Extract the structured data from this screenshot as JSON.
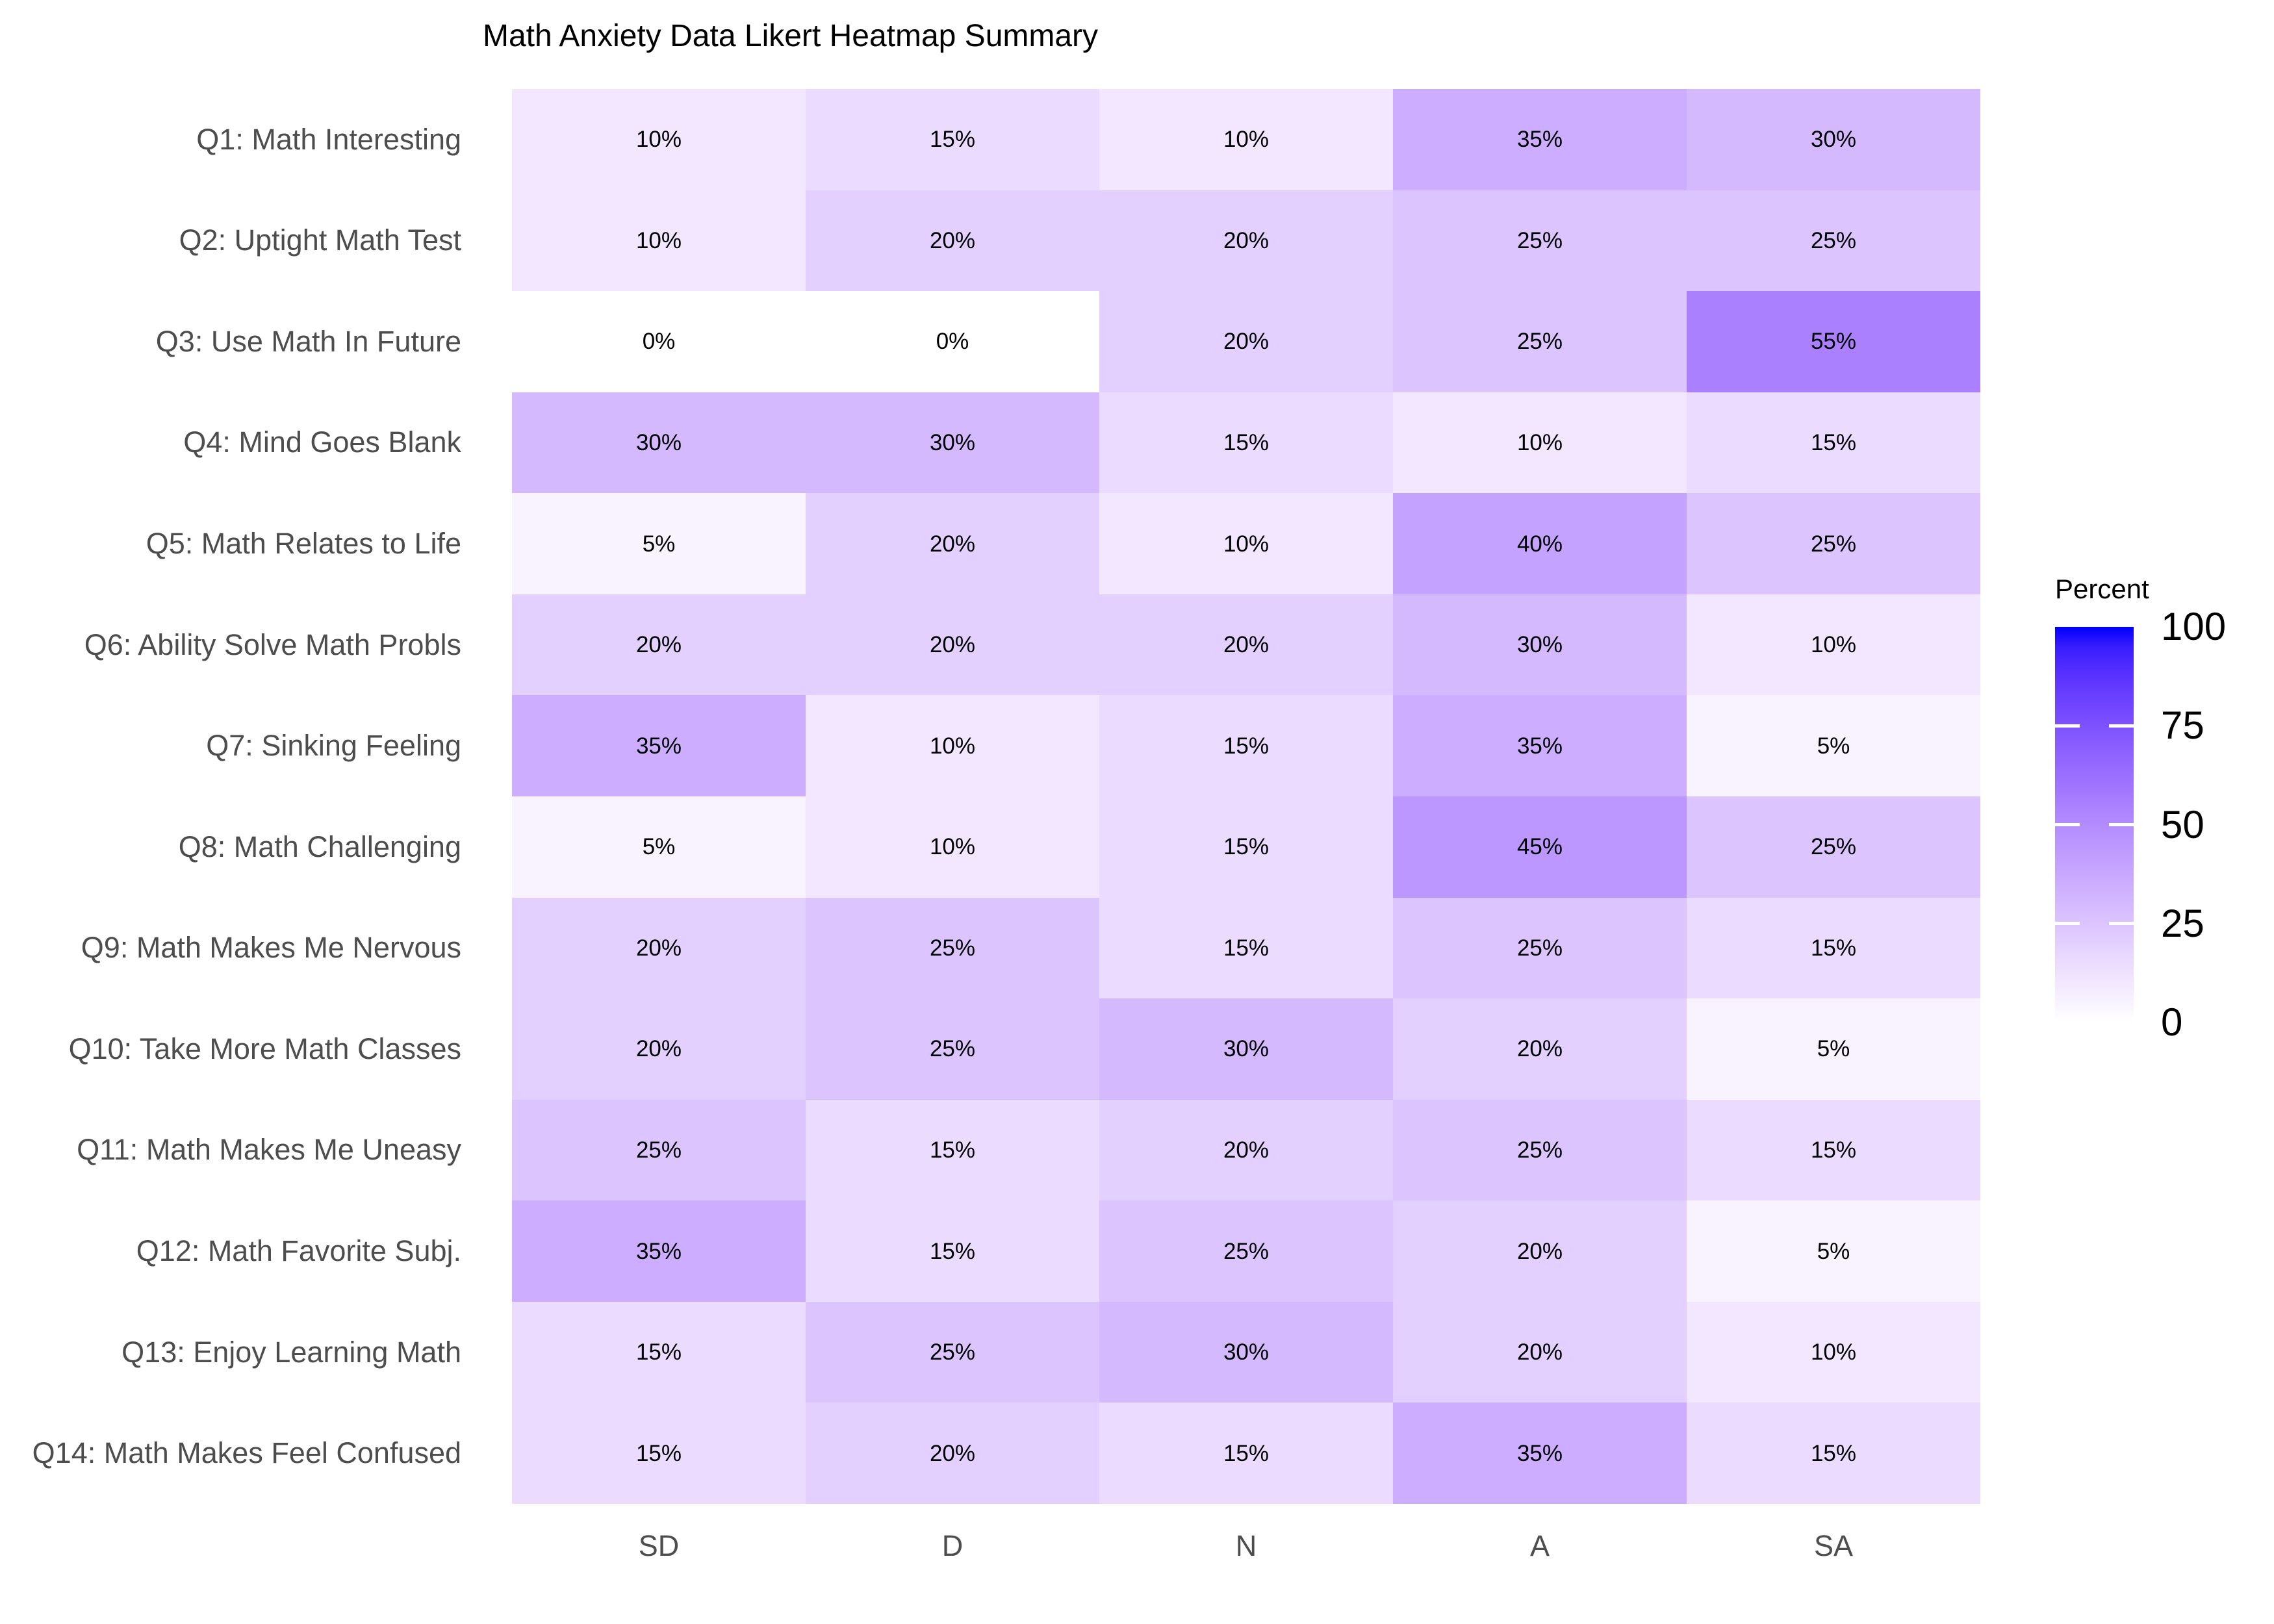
{
  "page": {
    "background_color": "#FFFFFF"
  },
  "chart_data": {
    "type": "heatmap",
    "title": "Math Anxiety Data Likert Heatmap Summary",
    "x_categories": [
      "SD",
      "D",
      "N",
      "A",
      "SA"
    ],
    "y_categories": [
      "Q1: Math Interesting",
      "Q2: Uptight Math Test",
      "Q3: Use Math In Future",
      "Q4: Mind Goes Blank",
      "Q5: Math Relates to Life",
      "Q6: Ability Solve Math Probls",
      "Q7: Sinking Feeling",
      "Q8: Math Challenging",
      "Q9: Math Makes Me Nervous",
      "Q10: Take More Math Classes",
      "Q11: Math Makes Me Uneasy",
      "Q12: Math Favorite Subj.",
      "Q13: Enjoy Learning Math",
      "Q14: Math Makes Feel Confused"
    ],
    "values_percent": [
      [
        10,
        15,
        10,
        35,
        30
      ],
      [
        10,
        20,
        20,
        25,
        25
      ],
      [
        0,
        0,
        20,
        25,
        55
      ],
      [
        30,
        30,
        15,
        10,
        15
      ],
      [
        5,
        20,
        10,
        40,
        25
      ],
      [
        20,
        20,
        20,
        30,
        10
      ],
      [
        35,
        10,
        15,
        35,
        5
      ],
      [
        5,
        10,
        15,
        45,
        25
      ],
      [
        20,
        25,
        15,
        25,
        15
      ],
      [
        20,
        25,
        30,
        20,
        5
      ],
      [
        25,
        15,
        20,
        25,
        15
      ],
      [
        35,
        15,
        25,
        20,
        5
      ],
      [
        15,
        25,
        30,
        20,
        10
      ],
      [
        15,
        20,
        15,
        35,
        15
      ]
    ],
    "cell_label_suffix": "%",
    "legend": {
      "title": "Percent",
      "range": [
        0,
        100
      ],
      "ticks": [
        0,
        25,
        50,
        75,
        100
      ],
      "low_color": "#FFFFFF",
      "high_color": "#0000FF",
      "position": "right"
    },
    "layout": {
      "grid": "off",
      "cell_borders": "none",
      "legend_position": "right"
    },
    "colors": {
      "title_text": "#000000",
      "axis_text": "#4D4D4D",
      "cell_text": "#000000",
      "legend_tick_text": "#000000",
      "legend_bar_tick_marks": "#FFFFFF"
    }
  }
}
